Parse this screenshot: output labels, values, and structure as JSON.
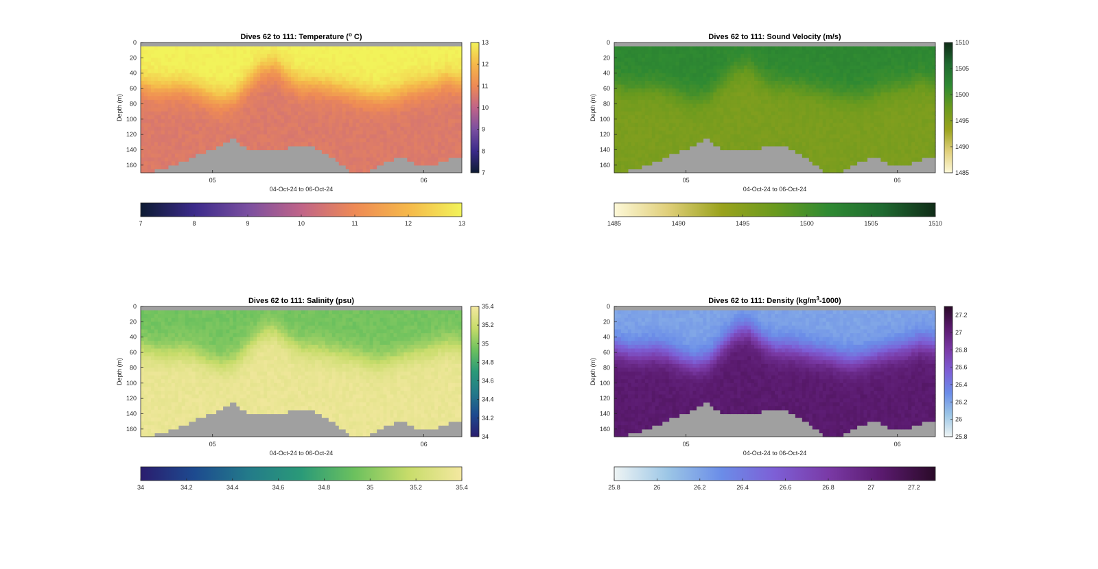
{
  "figure": {
    "panels": [
      {
        "id": "temperature",
        "title_main": "Dives 62 to 111: Temperature (",
        "title_sup": "o",
        "title_end": " C)",
        "colormap": [
          "#0d1b33",
          "#3b2a8a",
          "#7a4fa0",
          "#c06488",
          "#ee8a55",
          "#f5b84a",
          "#f2f35a"
        ],
        "colormap_names": [
          "deep-navy",
          "indigo",
          "purple",
          "rose",
          "orange",
          "amber",
          "yellow"
        ]
      },
      {
        "id": "sound_velocity",
        "title_main": "Dives 62 to 111: Sound Velocity (m/s)",
        "title_sup": "",
        "title_end": "",
        "colormap": [
          "#fdf8d8",
          "#e0cf7a",
          "#9aa31d",
          "#6a9a1e",
          "#2f8a32",
          "#1f6a30",
          "#102c18"
        ],
        "colormap_names": [
          "cream",
          "sand",
          "olive",
          "yellow-green",
          "green",
          "dark-green",
          "black-green"
        ]
      },
      {
        "id": "salinity",
        "title_main": "Dives 62 to 111: Salinity (psu)",
        "title_sup": "",
        "title_end": "",
        "colormap": [
          "#2a1d6e",
          "#1d4a8f",
          "#237a8a",
          "#2a9a78",
          "#6cc15e",
          "#c7dc6a",
          "#f4e8a0"
        ],
        "colormap_names": [
          "indigo",
          "blue",
          "teal",
          "sea-green",
          "green",
          "lime",
          "pale-yellow"
        ]
      },
      {
        "id": "density",
        "title_main": "Dives 62 to 111: Density (kg/m",
        "title_sup": "3",
        "title_end": "-1000)",
        "colormap": [
          "#eef4f4",
          "#9cc6e6",
          "#6b8de8",
          "#7d5fd6",
          "#7a3aa6",
          "#5a1a6e",
          "#2a0a28"
        ],
        "colormap_names": [
          "ice",
          "light-blue",
          "blue",
          "violet",
          "purple",
          "plum",
          "black-plum"
        ]
      }
    ],
    "gap_color": "#a0a0a0"
  },
  "chart_data": [
    {
      "type": "heatmap",
      "title": "Dives 62 to 111: Temperature (o C)",
      "xlabel": "04-Oct-24 to 06-Oct-24",
      "ylabel": "Depth (m)",
      "ylim": [
        170,
        0
      ],
      "yticks": [
        "0",
        "20",
        "40",
        "60",
        "80",
        "100",
        "120",
        "140",
        "160"
      ],
      "xticks": [
        "05",
        "06"
      ],
      "x_tick_positions_days": [
        1,
        2
      ],
      "x_range_days": [
        0.66,
        2.18
      ],
      "colorbar_right": {
        "range": [
          7,
          13
        ],
        "ticks": [
          "7",
          "8",
          "9",
          "10",
          "11",
          "12",
          "13"
        ]
      },
      "colorbar_bottom": {
        "range": [
          7,
          13
        ],
        "ticks": [
          "7",
          "8",
          "9",
          "10",
          "11",
          "12",
          "13"
        ]
      },
      "surface_value": 13,
      "deep_value": 10.6,
      "thermocline_depths_m": [
        55,
        60,
        60,
        58,
        62,
        70,
        75,
        70,
        52,
        35,
        30,
        45,
        55,
        55,
        58,
        62,
        65,
        70,
        72,
        68,
        62,
        58,
        55,
        48,
        52
      ]
    },
    {
      "type": "heatmap",
      "title": "Dives 62 to 111: Sound Velocity (m/s)",
      "xlabel": "04-Oct-24 to 06-Oct-24",
      "ylabel": "Depth (m)",
      "ylim": [
        170,
        0
      ],
      "yticks": [
        "0",
        "20",
        "40",
        "60",
        "80",
        "100",
        "120",
        "140",
        "160"
      ],
      "xticks": [
        "05",
        "06"
      ],
      "x_tick_positions_days": [
        1,
        2
      ],
      "x_range_days": [
        0.66,
        2.18
      ],
      "colorbar_right": {
        "range": [
          1485,
          1510
        ],
        "ticks": [
          "1485",
          "1490",
          "1495",
          "1500",
          "1505",
          "1510"
        ]
      },
      "colorbar_bottom": {
        "range": [
          1485,
          1510
        ],
        "ticks": [
          "1485",
          "1490",
          "1495",
          "1500",
          "1505",
          "1510"
        ]
      },
      "surface_value": 1502,
      "deep_value": 1496,
      "thermocline_depths_m": [
        55,
        60,
        60,
        58,
        62,
        70,
        75,
        70,
        52,
        35,
        30,
        45,
        55,
        55,
        58,
        62,
        65,
        70,
        72,
        68,
        62,
        58,
        55,
        48,
        52
      ]
    },
    {
      "type": "heatmap",
      "title": "Dives 62 to 111: Salinity (psu)",
      "xlabel": "04-Oct-24 to 06-Oct-24",
      "ylabel": "Depth (m)",
      "ylim": [
        170,
        0
      ],
      "yticks": [
        "0",
        "20",
        "40",
        "60",
        "80",
        "100",
        "120",
        "140",
        "160"
      ],
      "xticks": [
        "05",
        "06"
      ],
      "x_tick_positions_days": [
        1,
        2
      ],
      "x_range_days": [
        0.66,
        2.18
      ],
      "colorbar_right": {
        "range": [
          34,
          35.4
        ],
        "ticks": [
          "34",
          "34.2",
          "34.4",
          "34.6",
          "34.8",
          "35",
          "35.2",
          "35.4"
        ]
      },
      "colorbar_bottom": {
        "range": [
          34,
          35.4
        ],
        "ticks": [
          "34",
          "34.2",
          "34.4",
          "34.6",
          "34.8",
          "35",
          "35.2",
          "35.4"
        ]
      },
      "surface_value": 34.95,
      "deep_value": 35.35,
      "thermocline_depths_m": [
        55,
        60,
        60,
        58,
        62,
        70,
        75,
        70,
        52,
        35,
        30,
        45,
        55,
        55,
        58,
        62,
        65,
        70,
        72,
        68,
        62,
        58,
        55,
        48,
        52
      ]
    },
    {
      "type": "heatmap",
      "title": "Dives 62 to 111: Density (kg/m3-1000)",
      "xlabel": "04-Oct-24 to 06-Oct-24",
      "ylabel": "Depth (m)",
      "ylim": [
        170,
        0
      ],
      "yticks": [
        "0",
        "20",
        "40",
        "60",
        "80",
        "100",
        "120",
        "140",
        "160"
      ],
      "xticks": [
        "05",
        "06"
      ],
      "x_tick_positions_days": [
        1,
        2
      ],
      "x_range_days": [
        0.66,
        2.18
      ],
      "colorbar_right": {
        "range": [
          25.8,
          27.3
        ],
        "ticks": [
          "25.8",
          "26",
          "26.2",
          "26.4",
          "26.6",
          "26.8",
          "27",
          "27.2"
        ]
      },
      "colorbar_bottom": {
        "range": [
          25.8,
          27.3
        ],
        "ticks": [
          "25.8",
          "26",
          "26.2",
          "26.4",
          "26.6",
          "26.8",
          "27",
          "27.2"
        ]
      },
      "surface_value": 26.2,
      "deep_value": 27.05,
      "thermocline_depths_m": [
        55,
        60,
        60,
        58,
        62,
        70,
        75,
        70,
        52,
        35,
        30,
        45,
        55,
        55,
        58,
        62,
        65,
        70,
        72,
        68,
        62,
        58,
        55,
        48,
        52
      ]
    }
  ],
  "bottom_depth_profile_m": [
    170,
    168,
    165,
    162,
    158,
    152,
    147,
    142,
    138,
    130,
    125,
    135,
    140,
    138,
    140,
    142,
    138,
    135,
    133,
    138,
    145,
    150,
    160,
    168,
    170,
    168,
    160,
    155,
    150,
    152,
    158,
    162,
    160,
    155,
    150,
    148
  ]
}
